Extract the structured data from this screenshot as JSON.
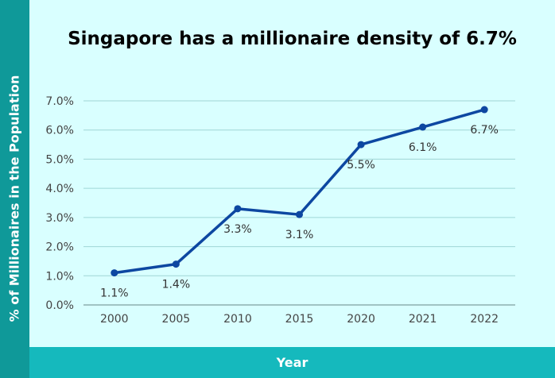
{
  "chart_data": {
    "type": "line",
    "title": "Singapore has a millionaire density of 6.7%",
    "xlabel": "Year",
    "ylabel": "% of Millionaires in the Population",
    "categories": [
      "2000",
      "2005",
      "2010",
      "2015",
      "2020",
      "2021",
      "2022"
    ],
    "values": [
      1.1,
      1.4,
      3.3,
      3.1,
      5.5,
      6.1,
      6.7
    ],
    "data_labels": [
      "1.1%",
      "1.4%",
      "3.3%",
      "3.1%",
      "5.5%",
      "6.1%",
      "6.7%"
    ],
    "y_ticks": [
      "0.0%",
      "1.0%",
      "2.0%",
      "3.0%",
      "4.0%",
      "5.0%",
      "6.0%",
      "7.0%"
    ],
    "ylim": [
      0,
      7
    ],
    "grid": true,
    "legend": "none",
    "colors": {
      "line": "#0d47a1",
      "background": "#d9ffff",
      "band_left": "#0f9999",
      "band_bottom": "#15b9bd",
      "grid": "#9fd6d6"
    }
  }
}
